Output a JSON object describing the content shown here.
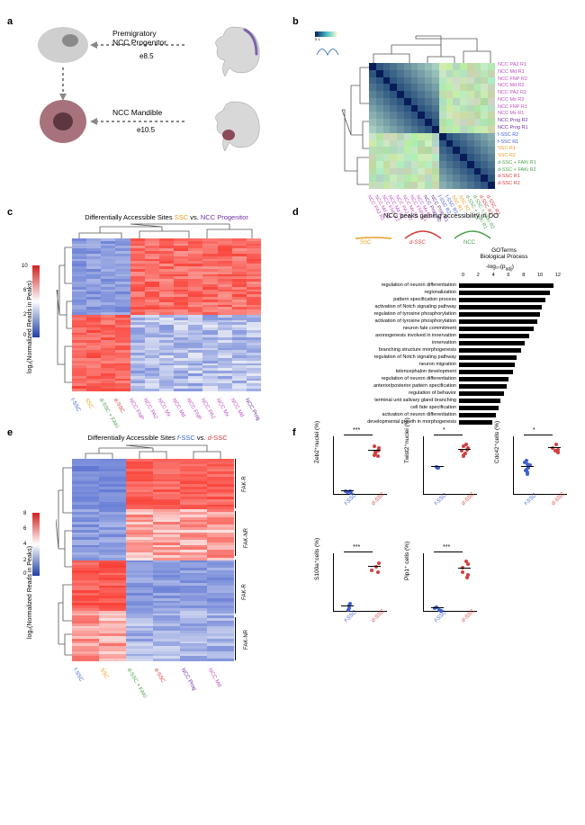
{
  "panel_labels": {
    "a": "a",
    "b": "b",
    "c": "c",
    "d": "d",
    "e": "e",
    "f": "f"
  },
  "panel_a": {
    "top_label": "Premigratory\nNCC Progenitor",
    "top_time": "e8.5",
    "bottom_label": "NCC Mandible",
    "bottom_time": "e10.5",
    "cell_colors": {
      "prog_outer": "#cfcfcf",
      "prog_nucleus": "#8a8a8a",
      "mand_outer": "#a8727d",
      "mand_nucleus": "#5c3740"
    },
    "embryo_color": "#d4d4d4",
    "ncc_streak": "#7d63a8",
    "ncc_mand": "#8a4a5a"
  },
  "panel_b": {
    "title": "",
    "samples": [
      {
        "name": "NCC PA2 R1",
        "color": "#c050c0"
      },
      {
        "name": "NCC Md R1",
        "color": "#c050c0"
      },
      {
        "name": "NCC FNP R2",
        "color": "#c050c0"
      },
      {
        "name": "NCC Md R2",
        "color": "#c050c0"
      },
      {
        "name": "NCC PA2 R2",
        "color": "#c050c0"
      },
      {
        "name": "NCC Mx R2",
        "color": "#c050c0"
      },
      {
        "name": "NCC FNP R1",
        "color": "#c050c0"
      },
      {
        "name": "NCC Mx R1",
        "color": "#c050c0"
      },
      {
        "name": "NCC Prog R2",
        "color": "#7030a0"
      },
      {
        "name": "NCC Prog R1",
        "color": "#7030a0"
      },
      {
        "name": "f-SSC R2",
        "color": "#4060d0"
      },
      {
        "name": "f-SSC R1",
        "color": "#4060d0"
      },
      {
        "name": "SSC R1",
        "color": "#e8a020"
      },
      {
        "name": "SSC R2",
        "color": "#e8a020"
      },
      {
        "name": "d-SSC + FAKi R1",
        "color": "#50a050"
      },
      {
        "name": "d-SSC + FAKi R2",
        "color": "#50a050"
      },
      {
        "name": "d-SSC R1",
        "color": "#d04040"
      },
      {
        "name": "d-SSC R2",
        "color": "#d04040"
      }
    ],
    "colorbar": {
      "min": 0,
      "max": 1,
      "colors": [
        "#081d58",
        "#253494",
        "#41b6c4",
        "#c7e9b4",
        "#ffffd9"
      ]
    },
    "blocks": [
      {
        "r0": 0,
        "r1": 10,
        "c0": 0,
        "c1": 10,
        "base": "#1a4b8c"
      },
      {
        "r0": 10,
        "r1": 18,
        "c0": 10,
        "c1": 18,
        "base": "#2d6b4a"
      },
      {
        "r0": 0,
        "r1": 10,
        "c0": 10,
        "c1": 18,
        "base": "#a8d4a0"
      },
      {
        "r0": 10,
        "r1": 18,
        "c0": 0,
        "c1": 10,
        "base": "#a8d4a0"
      }
    ]
  },
  "panel_c": {
    "title": "Differentially Accessible Sites SSC vs. NCC Progenitor",
    "title_colors": {
      "SSC": "#e8a020",
      "NCC_Progenitor": "#7030a0"
    },
    "y_axis": "log₂(Normalized Reads in Peaks)",
    "colorbar": {
      "ticks": [
        0,
        2,
        6,
        10
      ],
      "colors": [
        "#2040a0",
        "#ffffff",
        "#d02020"
      ]
    },
    "columns": [
      {
        "name": "f-SSC",
        "color": "#4060d0"
      },
      {
        "name": "SSC",
        "color": "#e8a020"
      },
      {
        "name": "d-SSC + FAKi",
        "color": "#50a050"
      },
      {
        "name": "d-SSC",
        "color": "#d04040"
      },
      {
        "name": "NCC FNP",
        "color": "#c050c0"
      },
      {
        "name": "NCC PA2",
        "color": "#c050c0"
      },
      {
        "name": "NCC Mx",
        "color": "#c050c0"
      },
      {
        "name": "NCC Md",
        "color": "#c050c0"
      },
      {
        "name": "NCC FNP",
        "color": "#c050c0"
      },
      {
        "name": "NCC PA2",
        "color": "#c050c0"
      },
      {
        "name": "NCC Mx",
        "color": "#c050c0"
      },
      {
        "name": "NCC Md",
        "color": "#c050c0"
      },
      {
        "name": "NCC Prog",
        "color": "#7030a0"
      }
    ]
  },
  "panel_d": {
    "title": "NCC peaks gaining accessibility in DO",
    "subtitle": "GOTerms\nBiological Process",
    "curve_labels": [
      {
        "name": "SSC",
        "color": "#e8a020"
      },
      {
        "name": "d-SSC",
        "color": "#d04040"
      },
      {
        "name": "NCC",
        "color": "#50a050"
      }
    ],
    "x_axis": "-log₁₀(p_adj)",
    "x_ticks": [
      0,
      2,
      4,
      6,
      8,
      10,
      12
    ],
    "terms": [
      {
        "label": "regulation of neuron differentiation",
        "val": 11.5
      },
      {
        "label": "regionalization",
        "val": 11
      },
      {
        "label": "pattern specification process",
        "val": 10.5
      },
      {
        "label": "activation of Notch signaling pathway",
        "val": 10
      },
      {
        "label": "regulation of tyrosine phosphorylation",
        "val": 9.8
      },
      {
        "label": "activation of tyrosine phosphorylation",
        "val": 9.5
      },
      {
        "label": "neuron fate commitment",
        "val": 9
      },
      {
        "label": "axonogenesis involved in innervation",
        "val": 8.5
      },
      {
        "label": "innervation",
        "val": 8
      },
      {
        "label": "branching structure morphogenesis",
        "val": 7.5
      },
      {
        "label": "regulation of Notch signaling pathway",
        "val": 7
      },
      {
        "label": "neuron migration",
        "val": 6.8
      },
      {
        "label": "telencephalon development",
        "val": 6.5
      },
      {
        "label": "regulation of neuron differentiation",
        "val": 6
      },
      {
        "label": "anterior/posterior pattern specification",
        "val": 5.8
      },
      {
        "label": "regulation of behavior",
        "val": 5.5
      },
      {
        "label": "terminal unit salivary gland branching",
        "val": 5
      },
      {
        "label": "cell fate specification",
        "val": 4.8
      },
      {
        "label": "activation of neuron differentiation",
        "val": 4.5
      },
      {
        "label": "developmental growth in morphogenesis",
        "val": 4
      }
    ]
  },
  "panel_e": {
    "title": "Differentially Accessible Sites f-SSC vs. d-SSC",
    "title_colors": {
      "fSSC": "#4060d0",
      "dSSC": "#d04040"
    },
    "y_axis": "log₂(Normalized Reads in Peaks)",
    "colorbar": {
      "ticks": [
        0,
        2,
        4,
        6,
        8
      ],
      "colors": [
        "#2040a0",
        "#ffffff",
        "#d02020"
      ]
    },
    "columns": [
      {
        "name": "f-SSC",
        "color": "#4060d0"
      },
      {
        "name": "SSC",
        "color": "#e8a020"
      },
      {
        "name": "d-SSC + FAKi",
        "color": "#50a050"
      },
      {
        "name": "d-SSC",
        "color": "#d04040"
      },
      {
        "name": "NCC Prog",
        "color": "#7030a0"
      },
      {
        "name": "NCC Md",
        "color": "#c050c0"
      }
    ],
    "row_labels": [
      "FAK-R",
      "FAK-NR",
      "FAK-R",
      "FAK-NR"
    ]
  },
  "panel_f": {
    "plots": [
      {
        "ylabel": "Zeb2⁺nuclei (%)",
        "sig": "***",
        "groups": [
          {
            "name": "f-SSC",
            "color": "#4060d0",
            "vals": [
              5,
              7,
              4,
              6
            ]
          },
          {
            "name": "d-SSC",
            "color": "#d04040",
            "vals": [
              50,
              55,
              48,
              52,
              58,
              60,
              54
            ]
          }
        ],
        "ylim": [
          0,
          70
        ]
      },
      {
        "ylabel": "Twist2⁺nuclei (%)",
        "sig": "*",
        "groups": [
          {
            "name": "f-SSC",
            "color": "#4060d0",
            "vals": [
              35,
              36,
              34
            ]
          },
          {
            "name": "d-SSC",
            "color": "#d04040",
            "vals": [
              50,
              55,
              48,
              58,
              60,
              52,
              56,
              62
            ]
          }
        ],
        "ylim": [
          0,
          70
        ]
      },
      {
        "ylabel": "Cdc42⁺cells (%)",
        "sig": "*",
        "groups": [
          {
            "name": "f-SSC",
            "color": "#4060d0",
            "vals": [
              38,
              45,
              35,
              50,
              42,
              55,
              40,
              48,
              52
            ]
          },
          {
            "name": "d-SSC",
            "color": "#d04040",
            "vals": [
              70,
              75,
              72,
              80,
              68
            ]
          }
        ],
        "ylim": [
          0,
          90
        ]
      },
      {
        "ylabel": "S100a⁺cells (%)",
        "sig": "***",
        "groups": [
          {
            "name": "f-SSC",
            "color": "#4060d0",
            "vals": [
              3,
              5,
              2,
              6
            ]
          },
          {
            "name": "d-SSC",
            "color": "#d04040",
            "vals": [
              25,
              28,
              26,
              30
            ]
          }
        ],
        "ylim": [
          0,
          35
        ]
      },
      {
        "ylabel": "Pip1⁺ cells (%)",
        "sig": "***",
        "groups": [
          {
            "name": "f-SSC",
            "color": "#4060d0",
            "vals": [
              2,
              4,
              3,
              5,
              2
            ]
          },
          {
            "name": "d-SSC",
            "color": "#d04040",
            "vals": [
              30,
              35,
              28,
              38,
              40,
              32
            ]
          }
        ],
        "ylim": [
          0,
          45
        ]
      }
    ]
  }
}
